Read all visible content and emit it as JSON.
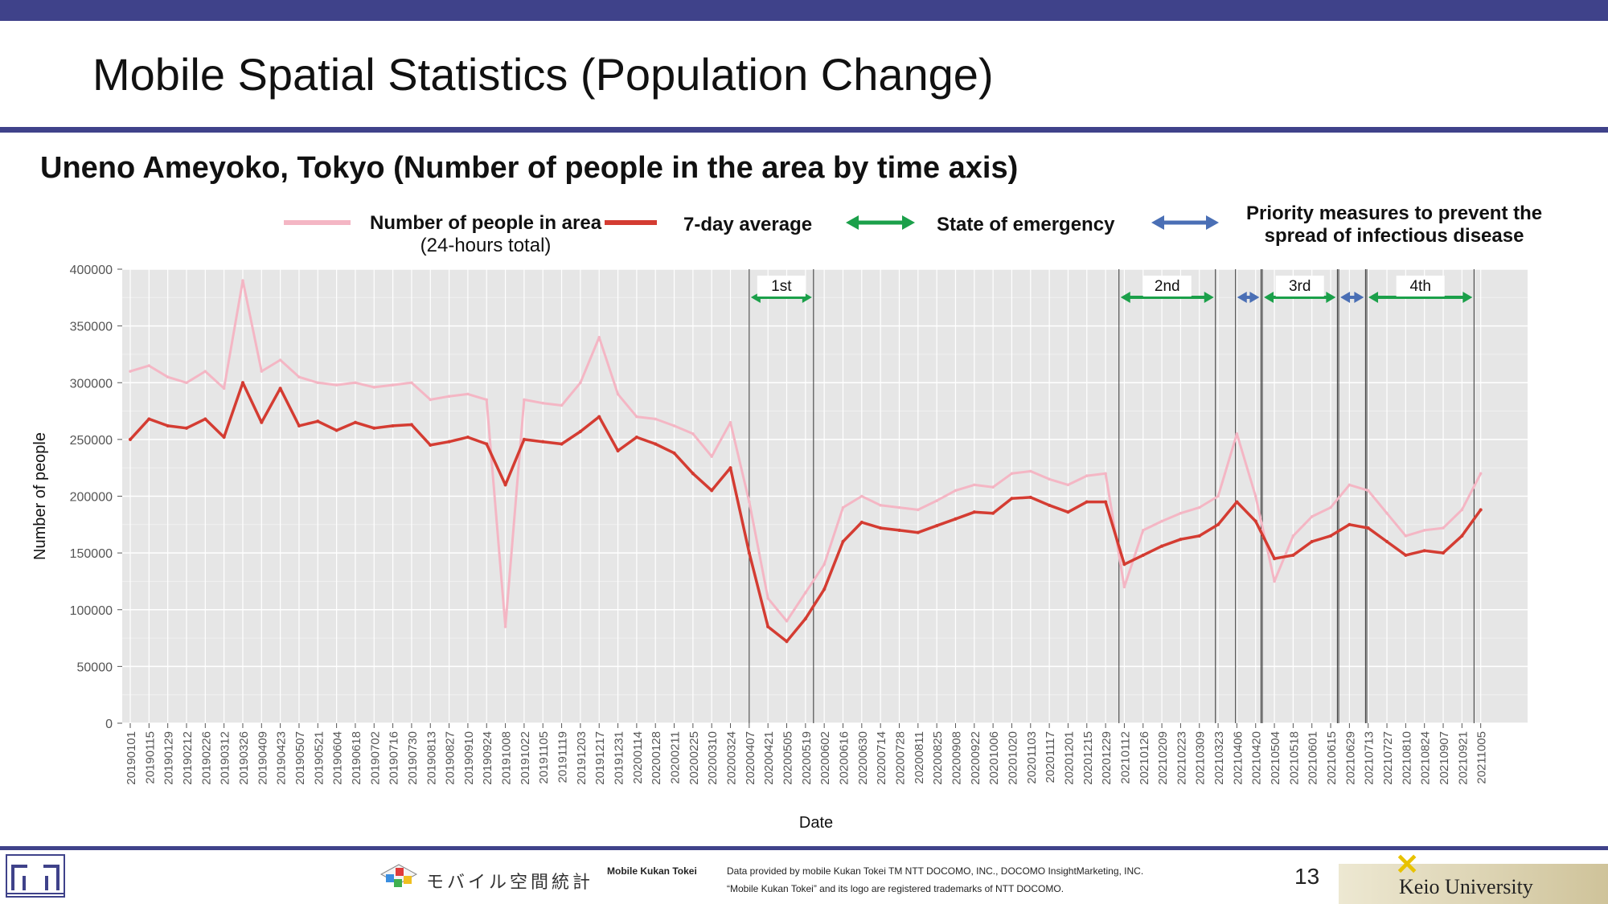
{
  "slide": {
    "title": "Mobile Spatial Statistics (Population Change)",
    "subtitle": "Uneno Ameyoko, Tokyo (Number of people in the area by time axis)",
    "page_number": "13"
  },
  "legend": {
    "daily_label_line1": "Number of people in area",
    "daily_label_line2": "(24-hours total)",
    "avg_label": "7-day average",
    "emergency_label": "State of emergency",
    "priority_label_line1": "Priority measures to prevent the",
    "priority_label_line2": "spread of infectious disease"
  },
  "footer": {
    "mk_name": "Mobile Kukan Tokei",
    "mk_logo_text": "モバイル空間統計",
    "credit_line1": "Data provided by mobile Kukan Tokei TM NTT DOCOMO, INC., DOCOMO InsightMarketing, INC.",
    "credit_line2": "“Mobile Kukan Tokei” and its logo are registered trademarks of NTT DOCOMO.",
    "university": "Keio University"
  },
  "colors": {
    "brand": "#3f428a",
    "daily": "#f4b6c4",
    "avg": "#d43c32",
    "emergency": "#1ba04a",
    "priority": "#4a6fb5",
    "panel": "#e6e6e6"
  },
  "chart_data": {
    "type": "line",
    "xlabel": "Date",
    "ylabel": "Number of people",
    "ylim": [
      0,
      400000
    ],
    "yticks": [
      0,
      50000,
      100000,
      150000,
      200000,
      250000,
      300000,
      350000,
      400000
    ],
    "xlim": [
      "2018-12-26",
      "2021-11-09"
    ],
    "x_tick_labels": [
      "20190101",
      "20190115",
      "20190129",
      "20190212",
      "20190226",
      "20190312",
      "20190326",
      "20190409",
      "20190423",
      "20190507",
      "20190521",
      "20190604",
      "20190618",
      "20190702",
      "20190716",
      "20190730",
      "20190813",
      "20190827",
      "20190910",
      "20190924",
      "20191008",
      "20191022",
      "20191105",
      "20191119",
      "20191203",
      "20191217",
      "20191231",
      "20200114",
      "20200128",
      "20200211",
      "20200225",
      "20200310",
      "20200324",
      "20200407",
      "20200421",
      "20200505",
      "20200519",
      "20200602",
      "20200616",
      "20200630",
      "20200714",
      "20200728",
      "20200811",
      "20200825",
      "20200908",
      "20200922",
      "20201006",
      "20201020",
      "20201103",
      "20201117",
      "20201201",
      "20201215",
      "20201229",
      "20210112",
      "20210126",
      "20210209",
      "20210223",
      "20210309",
      "20210323",
      "20210406",
      "20210420",
      "20210504",
      "20210518",
      "20210601",
      "20210615",
      "20210629",
      "20210713",
      "20210727",
      "20210810",
      "20210824",
      "20210907",
      "20210921",
      "20211005"
    ],
    "grid": true,
    "legend_position": "top",
    "series": [
      {
        "name": "7-day average",
        "x": [
          "20190101",
          "20190115",
          "20190129",
          "20190212",
          "20190226",
          "20190312",
          "20190326",
          "20190409",
          "20190423",
          "20190507",
          "20190521",
          "20190604",
          "20190618",
          "20190702",
          "20190716",
          "20190730",
          "20190813",
          "20190827",
          "20190910",
          "20190924",
          "20191008",
          "20191022",
          "20191105",
          "20191119",
          "20191203",
          "20191217",
          "20191231",
          "20200114",
          "20200128",
          "20200211",
          "20200225",
          "20200310",
          "20200324",
          "20200407",
          "20200421",
          "20200505",
          "20200519",
          "20200602",
          "20200616",
          "20200630",
          "20200714",
          "20200728",
          "20200811",
          "20200825",
          "20200908",
          "20200922",
          "20201006",
          "20201020",
          "20201103",
          "20201117",
          "20201201",
          "20201215",
          "20201229",
          "20210112",
          "20210126",
          "20210209",
          "20210223",
          "20210309",
          "20210323",
          "20210406",
          "20210420",
          "20210504",
          "20210518",
          "20210601",
          "20210615",
          "20210629",
          "20210713",
          "20210727",
          "20210810",
          "20210824",
          "20210907",
          "20210921",
          "20211005"
        ],
        "values": [
          250000,
          268000,
          262000,
          260000,
          268000,
          252000,
          300000,
          265000,
          295000,
          262000,
          266000,
          258000,
          265000,
          260000,
          262000,
          263000,
          245000,
          248000,
          252000,
          246000,
          210000,
          250000,
          248000,
          246000,
          257000,
          270000,
          240000,
          252000,
          246000,
          238000,
          220000,
          205000,
          225000,
          150000,
          85000,
          72000,
          92000,
          118000,
          160000,
          177000,
          172000,
          170000,
          168000,
          174000,
          180000,
          186000,
          185000,
          198000,
          199000,
          192000,
          186000,
          195000,
          195000,
          140000,
          148000,
          156000,
          162000,
          165000,
          175000,
          195000,
          178000,
          145000,
          148000,
          160000,
          165000,
          175000,
          172000,
          160000,
          148000,
          152000,
          150000,
          165000,
          188000
        ]
      },
      {
        "name": "Number of people in area",
        "x": [
          "20190101",
          "20190115",
          "20190129",
          "20190212",
          "20190226",
          "20190312",
          "20190326",
          "20190409",
          "20190423",
          "20190507",
          "20190521",
          "20190604",
          "20190618",
          "20190702",
          "20190716",
          "20190730",
          "20190813",
          "20190827",
          "20190910",
          "20190924",
          "20191008",
          "20191022",
          "20191105",
          "20191119",
          "20191203",
          "20191217",
          "20191231",
          "20200114",
          "20200128",
          "20200211",
          "20200225",
          "20200310",
          "20200324",
          "20200407",
          "20200421",
          "20200505",
          "20200519",
          "20200602",
          "20200616",
          "20200630",
          "20200714",
          "20200728",
          "20200811",
          "20200825",
          "20200908",
          "20200922",
          "20201006",
          "20201020",
          "20201103",
          "20201117",
          "20201201",
          "20201215",
          "20201229",
          "20210112",
          "20210126",
          "20210209",
          "20210223",
          "20210309",
          "20210323",
          "20210406",
          "20210420",
          "20210504",
          "20210518",
          "20210601",
          "20210615",
          "20210629",
          "20210713",
          "20210727",
          "20210810",
          "20210824",
          "20210907",
          "20210921",
          "20211005"
        ],
        "values": [
          310000,
          315000,
          305000,
          300000,
          310000,
          295000,
          390000,
          310000,
          320000,
          305000,
          300000,
          298000,
          300000,
          296000,
          298000,
          300000,
          285000,
          288000,
          290000,
          285000,
          85000,
          285000,
          282000,
          280000,
          300000,
          340000,
          290000,
          270000,
          268000,
          262000,
          255000,
          235000,
          265000,
          195000,
          110000,
          90000,
          115000,
          140000,
          190000,
          200000,
          192000,
          190000,
          188000,
          196000,
          205000,
          210000,
          208000,
          220000,
          222000,
          215000,
          210000,
          218000,
          220000,
          120000,
          170000,
          178000,
          185000,
          190000,
          200000,
          255000,
          200000,
          125000,
          165000,
          182000,
          190000,
          210000,
          205000,
          185000,
          165000,
          170000,
          172000,
          188000,
          220000
        ]
      }
    ],
    "annotations": [
      {
        "label": "1st",
        "type": "State of emergency",
        "start": "20200407",
        "end": "20200525"
      },
      {
        "label": "2nd",
        "type": "State of emergency",
        "start": "20210108",
        "end": "20210321"
      },
      {
        "label": "",
        "type": "Priority measures to prevent the spread of infectious disease",
        "start": "20210405",
        "end": "20210424"
      },
      {
        "label": "3rd",
        "type": "State of emergency",
        "start": "20210425",
        "end": "20210620"
      },
      {
        "label": "",
        "type": "Priority measures to prevent the spread of infectious disease",
        "start": "20210621",
        "end": "20210711"
      },
      {
        "label": "4th",
        "type": "State of emergency",
        "start": "20210712",
        "end": "20210930"
      }
    ]
  }
}
